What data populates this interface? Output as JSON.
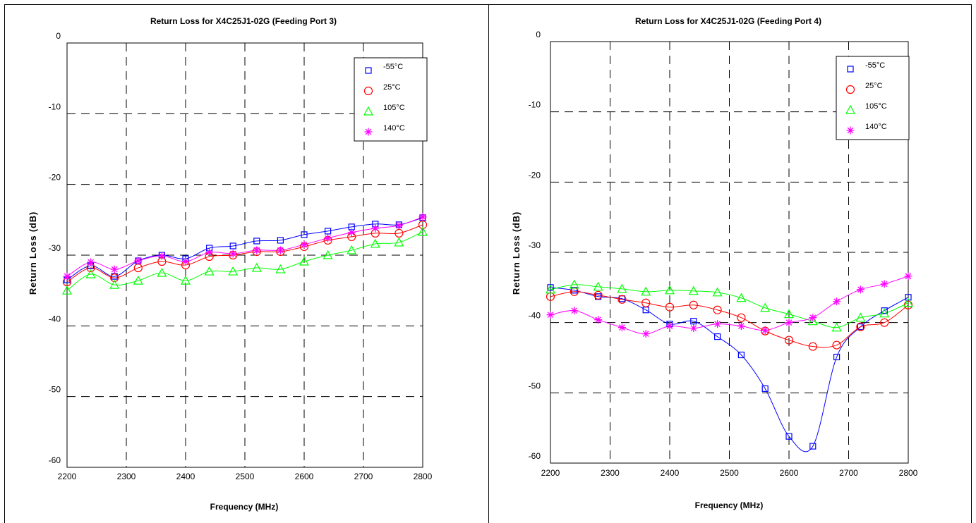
{
  "colors": {
    "-55C": "#0000ff",
    "25C": "#ff0000",
    "105C": "#00ff00",
    "140C": "#ff00ff",
    "grid": "#000000",
    "frame": "#000000"
  },
  "chart_data": [
    {
      "type": "line",
      "title": "Return Loss for X4C25J1-02G (Feeding Port 3)",
      "xlabel": "Frequency (MHz)",
      "ylabel": "Return Loss (dB)",
      "xlim": [
        2200,
        2800
      ],
      "ylim": [
        -60,
        0
      ],
      "xticks": [
        2200,
        2300,
        2400,
        2500,
        2600,
        2700,
        2800
      ],
      "yticks": [
        0,
        -10,
        -20,
        -30,
        -40,
        -50,
        -60
      ],
      "xtick_labels": [
        "2200",
        "2300",
        "2400",
        "2500",
        "2600",
        "2700",
        "2800"
      ],
      "ytick_labels": [
        "0",
        "-10",
        "-20",
        "-30",
        "-40",
        "-50",
        "-60"
      ],
      "grid": true,
      "legend": "top-right",
      "x": [
        2200,
        2240,
        2280,
        2320,
        2360,
        2400,
        2440,
        2480,
        2520,
        2560,
        2600,
        2640,
        2680,
        2720,
        2760,
        2800
      ],
      "series": [
        {
          "name": "-55°C",
          "marker": "square",
          "color": "#0000ff",
          "values": [
            -33.5,
            -31.5,
            -33.0,
            -30.8,
            -30.0,
            -30.5,
            -29.0,
            -28.7,
            -28.0,
            -27.9,
            -27.1,
            -26.6,
            -26.0,
            -25.6,
            -25.7,
            -24.7
          ]
        },
        {
          "name": "25°C",
          "marker": "circle",
          "color": "#ff0000",
          "values": [
            -33.8,
            -31.8,
            -33.2,
            -31.8,
            -30.9,
            -31.4,
            -30.2,
            -30.0,
            -29.5,
            -29.5,
            -28.8,
            -27.9,
            -27.4,
            -26.9,
            -26.9,
            -25.7
          ]
        },
        {
          "name": "105°C",
          "marker": "triangle",
          "color": "#00ff00",
          "values": [
            -35.0,
            -32.7,
            -34.2,
            -33.6,
            -32.5,
            -33.6,
            -32.3,
            -32.3,
            -31.8,
            -32.0,
            -30.9,
            -30.0,
            -29.3,
            -28.4,
            -28.2,
            -26.7
          ]
        },
        {
          "name": "140°C",
          "marker": "star",
          "color": "#ff00ff",
          "values": [
            -33.0,
            -31.0,
            -32.0,
            -30.8,
            -30.1,
            -30.9,
            -29.6,
            -29.8,
            -29.3,
            -29.3,
            -28.5,
            -27.6,
            -26.8,
            -26.2,
            -25.8,
            -24.6
          ]
        }
      ]
    },
    {
      "type": "line",
      "title": "Return Loss for X4C25J1-02G (Feeding Port 4)",
      "xlabel": "Frequency (MHz)",
      "ylabel": "Return Loss (dB)",
      "xlim": [
        2200,
        2800
      ],
      "ylim": [
        -60,
        0
      ],
      "xticks": [
        2200,
        2300,
        2400,
        2500,
        2600,
        2700,
        2800
      ],
      "yticks": [
        0,
        -10,
        -20,
        -30,
        -40,
        -50,
        -60
      ],
      "xtick_labels": [
        "2200",
        "2300",
        "2400",
        "2500",
        "2600",
        "2700",
        "2800"
      ],
      "ytick_labels": [
        "0",
        "-10",
        "-20",
        "-30",
        "-40",
        "-50",
        "-60"
      ],
      "grid": true,
      "legend": "top-right",
      "x": [
        2200,
        2240,
        2280,
        2320,
        2360,
        2400,
        2440,
        2480,
        2520,
        2560,
        2600,
        2640,
        2680,
        2720,
        2760,
        2800
      ],
      "series": [
        {
          "name": "-55°C",
          "marker": "square",
          "color": "#0000ff",
          "values": [
            -35.0,
            -35.4,
            -36.3,
            -36.6,
            -38.2,
            -40.2,
            -39.8,
            -42.0,
            -44.6,
            -49.4,
            -56.2,
            -57.6,
            -44.9,
            -40.6,
            -38.3,
            -36.4
          ]
        },
        {
          "name": "25°C",
          "marker": "circle",
          "color": "#ff0000",
          "values": [
            -36.3,
            -35.6,
            -36.1,
            -36.7,
            -37.2,
            -37.8,
            -37.5,
            -38.2,
            -39.3,
            -41.2,
            -42.5,
            -43.4,
            -43.2,
            -40.6,
            -40.0,
            -37.5
          ]
        },
        {
          "name": "105°C",
          "marker": "triangle",
          "color": "#00ff00",
          "values": [
            -35.3,
            -34.6,
            -34.9,
            -35.2,
            -35.6,
            -35.4,
            -35.5,
            -35.7,
            -36.5,
            -37.9,
            -38.8,
            -39.8,
            -40.7,
            -39.3,
            -38.7,
            -37.2
          ]
        },
        {
          "name": "140°C",
          "marker": "star",
          "color": "#ff00ff",
          "values": [
            -38.9,
            -38.3,
            -39.6,
            -40.7,
            -41.6,
            -40.5,
            -40.8,
            -40.2,
            -40.5,
            -41.1,
            -40.0,
            -39.3,
            -37.0,
            -35.3,
            -34.5,
            -33.4
          ]
        }
      ]
    }
  ]
}
